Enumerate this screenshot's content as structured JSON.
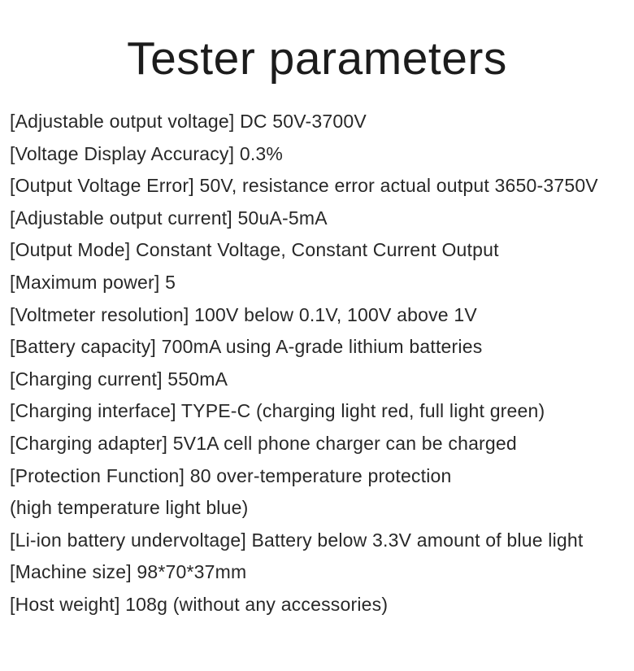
{
  "page": {
    "title": "Tester parameters",
    "background_color": "#ffffff",
    "title_color": "#1c1c1c",
    "text_color": "#282828"
  },
  "parameters": [
    {
      "label": "Adjustable output voltage",
      "value": "DC 50V-3700V"
    },
    {
      "label": "Voltage Display Accuracy",
      "value": "0.3%"
    },
    {
      "label": "Output Voltage Error",
      "value": "50V, resistance error actual output 3650-3750V"
    },
    {
      "label": "Adjustable output current",
      "value": "50uA-5mA"
    },
    {
      "label": "Output Mode",
      "value": "Constant Voltage, Constant Current Output"
    },
    {
      "label": "Maximum power",
      "value": "5"
    },
    {
      "label": "Voltmeter resolution",
      "value": "100V below 0.1V, 100V above 1V"
    },
    {
      "label": "Battery capacity",
      "value": "700mA using A-grade lithium batteries"
    },
    {
      "label": "Charging current",
      "value": "550mA"
    },
    {
      "label": "Charging interface",
      "value": "TYPE-C (charging light red, full light green)"
    },
    {
      "label": "Charging adapter",
      "value": "5V1A cell phone charger can be charged"
    },
    {
      "label": "Protection Function",
      "value": "80 over-temperature protection"
    },
    {
      "label": "",
      "value": "(high temperature light blue)"
    },
    {
      "label": "Li-ion battery undervoltage",
      "value": "Battery below 3.3V amount of blue light"
    },
    {
      "label": "Machine size",
      "value": "98*70*37mm"
    },
    {
      "label": "Host weight",
      "value": "108g (without any accessories)"
    }
  ]
}
